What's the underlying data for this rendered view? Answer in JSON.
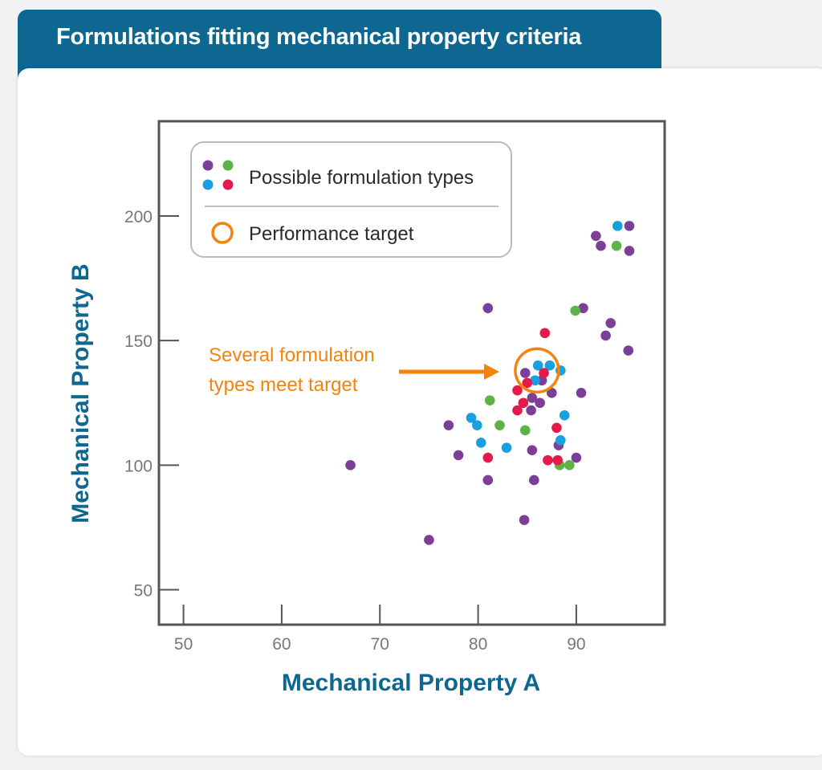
{
  "header": {
    "title": "Formulations fitting mechanical property criteria"
  },
  "colors": {
    "brand": "#0d6791",
    "purple": "#7b3f98",
    "green": "#5cb346",
    "blue": "#1a9fe0",
    "red": "#e5194b",
    "target": "#f5820d"
  },
  "chart_data": {
    "type": "scatter",
    "xlabel": "Mechanical Property A",
    "ylabel": "Mechanical Property B",
    "xlim": [
      47.5,
      99
    ],
    "ylim": [
      36,
      238
    ],
    "xticks": [
      50,
      60,
      70,
      80,
      90
    ],
    "yticks": [
      50,
      100,
      150,
      200
    ],
    "grid": false,
    "legend": {
      "placement": "top-left",
      "items": [
        "Possible formulation types",
        "Performance target"
      ]
    },
    "annotation": {
      "lines": [
        "Several formulation",
        "types meet target"
      ]
    },
    "target": {
      "x": 86,
      "y": 138
    },
    "series": [
      {
        "color": "#7b3f98",
        "points": [
          [
            67,
            100
          ],
          [
            75,
            70
          ],
          [
            77,
            116
          ],
          [
            78,
            104
          ],
          [
            81,
            163
          ],
          [
            81,
            94
          ],
          [
            84.7,
            78
          ],
          [
            84.8,
            137
          ],
          [
            85.5,
            127
          ],
          [
            85.4,
            122
          ],
          [
            85.5,
            106
          ],
          [
            85.7,
            94
          ],
          [
            86.3,
            125
          ],
          [
            86.5,
            134
          ],
          [
            87.5,
            129
          ],
          [
            88.2,
            108
          ],
          [
            90,
            103
          ],
          [
            90.5,
            129
          ],
          [
            90.7,
            163
          ],
          [
            92,
            192
          ],
          [
            92.5,
            188
          ],
          [
            93,
            152
          ],
          [
            93.5,
            157
          ],
          [
            95.3,
            146
          ],
          [
            95.4,
            186
          ],
          [
            95.4,
            196
          ]
        ]
      },
      {
        "color": "#5cb346",
        "points": [
          [
            81.2,
            126
          ],
          [
            82.2,
            116
          ],
          [
            84.8,
            114
          ],
          [
            88.3,
            100
          ],
          [
            89.3,
            100
          ],
          [
            89.9,
            162
          ],
          [
            94.1,
            188
          ]
        ]
      },
      {
        "color": "#1a9fe0",
        "points": [
          [
            79.3,
            119
          ],
          [
            79.9,
            116
          ],
          [
            80.3,
            109
          ],
          [
            82.9,
            107
          ],
          [
            85.8,
            134
          ],
          [
            86.1,
            140
          ],
          [
            87.3,
            140
          ],
          [
            88.4,
            138
          ],
          [
            88.4,
            110
          ],
          [
            88.8,
            120
          ],
          [
            94.2,
            196
          ]
        ]
      },
      {
        "color": "#e5194b",
        "points": [
          [
            81,
            103
          ],
          [
            84,
            130
          ],
          [
            84,
            122
          ],
          [
            84.6,
            125
          ],
          [
            85,
            133
          ],
          [
            86.7,
            137
          ],
          [
            86.8,
            153
          ],
          [
            87.1,
            102
          ],
          [
            88,
            115
          ],
          [
            88.1,
            102
          ]
        ]
      }
    ]
  }
}
